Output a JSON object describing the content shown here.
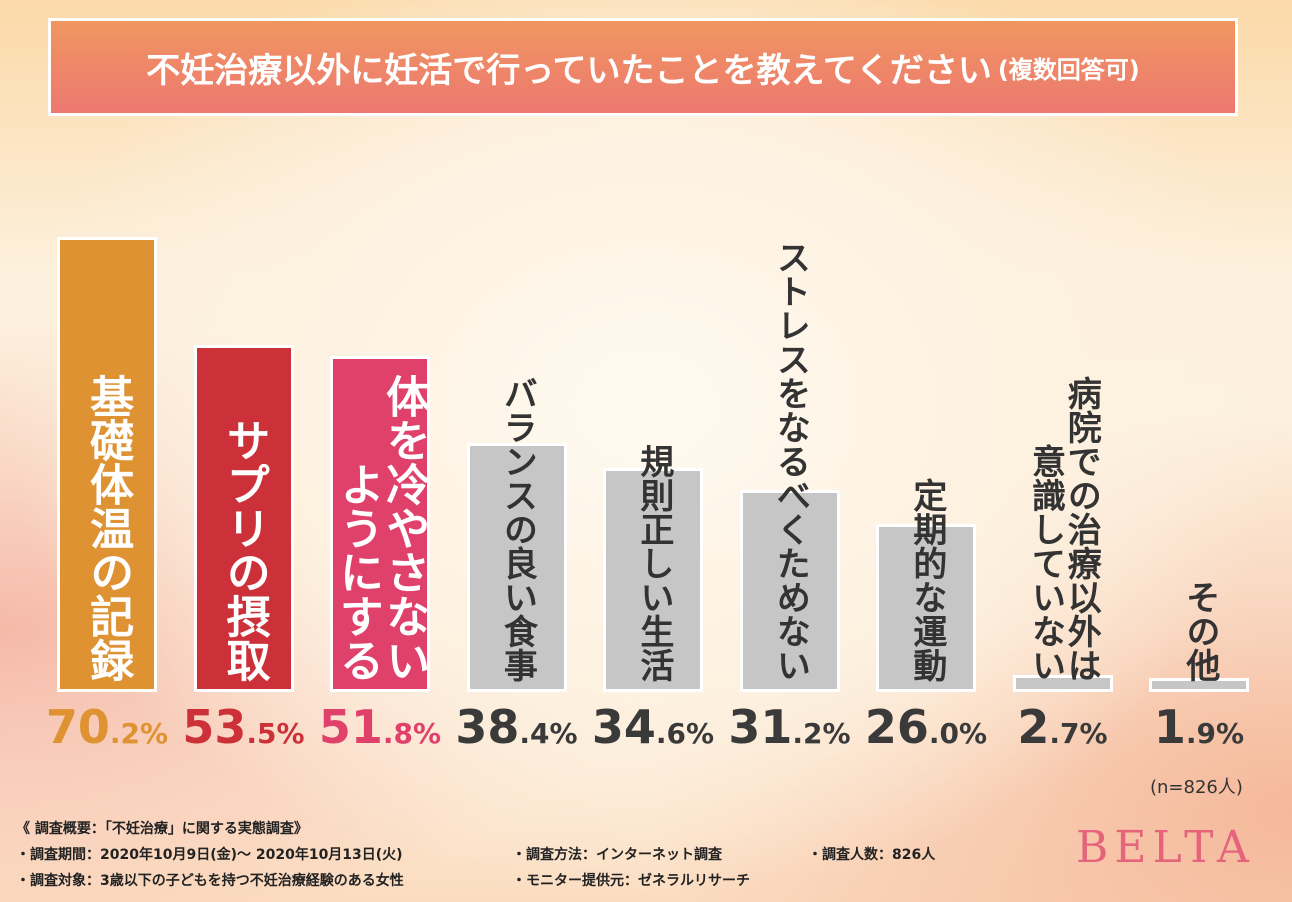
{
  "title": {
    "main": "不妊治療以外に妊活で行っていたことを教えてください",
    "sub": "(複数回答可)"
  },
  "chart_data": {
    "type": "bar",
    "title": "不妊治療以外に妊活で行っていたことを教えてください(複数回答可)",
    "categories": [
      "基礎体温の記録",
      "サプリの摂取",
      "体を冷やさないようにする",
      "バランスの良い食事",
      "規則正しい生活",
      "ストレスをなるべくためない",
      "定期的な運動",
      "病院での治療以外は意識していない",
      "その他"
    ],
    "label_columns": [
      [
        "基礎体温の記録"
      ],
      [
        "サプリの摂取"
      ],
      [
        "体を冷やさない",
        "ようにする"
      ],
      [
        "バランスの良い食事"
      ],
      [
        "規則正しい生活"
      ],
      [
        "ストレスをなるべくためない"
      ],
      [
        "定期的な運動"
      ],
      [
        "病院での治療以外は",
        "意識していない"
      ],
      [
        "その他"
      ]
    ],
    "values": [
      70.2,
      53.5,
      51.8,
      38.4,
      34.6,
      31.2,
      26.0,
      2.7,
      1.9
    ],
    "unit": "%",
    "colors": [
      "#de9232",
      "#cc3139",
      "#e0416b",
      "#c6c6c6",
      "#c6c6c6",
      "#c6c6c6",
      "#c6c6c6",
      "#c6c6c6",
      "#c6c6c6"
    ],
    "value_colors": [
      "#de9232",
      "#cc3139",
      "#e0416b",
      "#3a3a3a",
      "#3a3a3a",
      "#3a3a3a",
      "#3a3a3a",
      "#3a3a3a",
      "#3a3a3a"
    ],
    "ylim": [
      0,
      100
    ],
    "xlabel": "",
    "ylabel": "",
    "grid": false
  },
  "sample_note": "(n=826人)",
  "footer": {
    "heading": "《 調査概要：「不妊治療」に関する実態調査》",
    "period": "・調査期間：2020年10月9日(金)～ 2020年10月13日(火)",
    "method": "・調査方法：インターネット調査",
    "count": "・調査人数：826人",
    "target": "・調査対象：3歳以下の子どもを持つ不妊治療経験のある女性",
    "provider": "・モニター提供元：ゼネラルリサーチ"
  },
  "logo": "BELTA"
}
